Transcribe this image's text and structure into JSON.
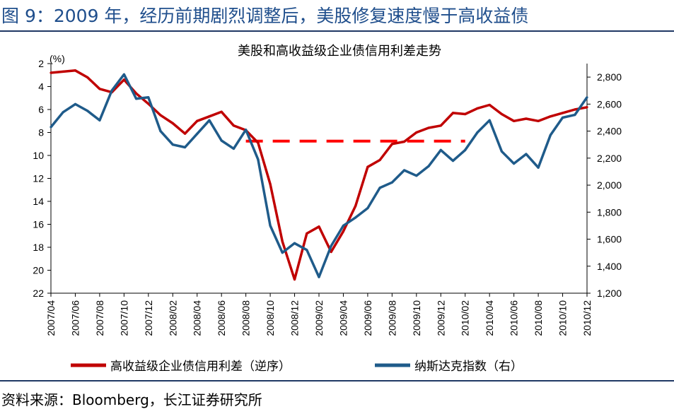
{
  "figure_title": "图 9：2009 年，经历前期剧烈调整后，美股修复速度慢于高收益债",
  "source": "资料来源：Bloomberg，长江证券研究所",
  "colors": {
    "red_series": "#c00000",
    "blue_series": "#1f5b8a",
    "accent": "#ff0000",
    "title": "#1f4e8c"
  },
  "chart_data": {
    "type": "line",
    "title": "美股和高收益级企业债信用利差走势",
    "left_unit": "(%)",
    "left_axis": {
      "ticks": [
        2,
        4,
        6,
        8,
        10,
        12,
        14,
        16,
        18,
        20,
        22
      ],
      "range": [
        2,
        22
      ],
      "inverted": true
    },
    "right_axis": {
      "ticks": [
        1200,
        1400,
        1600,
        1800,
        2000,
        2200,
        2400,
        2600,
        2800
      ],
      "tick_labels": [
        "1,200",
        "1,400",
        "1,600",
        "1,800",
        "2,000",
        "2,200",
        "2,400",
        "2,600",
        "2,800"
      ],
      "range": [
        1200,
        2900
      ]
    },
    "x_tick_labels": [
      "2007/04",
      "2007/06",
      "2007/08",
      "2007/10",
      "2007/12",
      "2008/02",
      "2008/04",
      "2008/06",
      "2008/08",
      "2008/10",
      "2008/12",
      "2009/02",
      "2009/04",
      "2009/06",
      "2009/08",
      "2009/10",
      "2009/12",
      "2010/02",
      "2010/04",
      "2010/06",
      "2010/08",
      "2010/10",
      "2010/12"
    ],
    "series": [
      {
        "name": "高收益级企业债信用利差（逆序）",
        "axis": "left",
        "color": "#c00000",
        "x": [
          "2007/04",
          "2007/05",
          "2007/06",
          "2007/07",
          "2007/08",
          "2007/09",
          "2007/10",
          "2007/11",
          "2007/12",
          "2008/01",
          "2008/02",
          "2008/03",
          "2008/04",
          "2008/05",
          "2008/06",
          "2008/07",
          "2008/08",
          "2008/09",
          "2008/10",
          "2008/11",
          "2008/12",
          "2009/01",
          "2009/02",
          "2009/03",
          "2009/04",
          "2009/05",
          "2009/06",
          "2009/07",
          "2009/08",
          "2009/09",
          "2009/10",
          "2009/11",
          "2009/12",
          "2010/01",
          "2010/02",
          "2010/03",
          "2010/04",
          "2010/05",
          "2010/06",
          "2010/07",
          "2010/08",
          "2010/09",
          "2010/10",
          "2010/11",
          "2010/12"
        ],
        "values": [
          2.8,
          2.7,
          2.6,
          3.2,
          4.2,
          4.5,
          3.4,
          4.6,
          5.5,
          6.5,
          7.2,
          8.1,
          7.0,
          6.6,
          6.2,
          7.4,
          7.8,
          8.9,
          12.5,
          17.5,
          20.8,
          16.8,
          16.2,
          18.4,
          16.6,
          14.4,
          11.0,
          10.4,
          9.0,
          8.8,
          8.0,
          7.6,
          7.4,
          6.3,
          6.4,
          5.9,
          5.6,
          6.4,
          7.0,
          6.8,
          7.0,
          6.6,
          6.3,
          6.0,
          5.8
        ]
      },
      {
        "name": "纳斯达克指数（右）",
        "axis": "right",
        "color": "#1f5b8a",
        "x": [
          "2007/04",
          "2007/05",
          "2007/06",
          "2007/07",
          "2007/08",
          "2007/09",
          "2007/10",
          "2007/11",
          "2007/12",
          "2008/01",
          "2008/02",
          "2008/03",
          "2008/04",
          "2008/05",
          "2008/06",
          "2008/07",
          "2008/08",
          "2008/09",
          "2008/10",
          "2008/11",
          "2008/12",
          "2009/01",
          "2009/02",
          "2009/03",
          "2009/04",
          "2009/05",
          "2009/06",
          "2009/07",
          "2009/08",
          "2009/09",
          "2009/10",
          "2009/11",
          "2009/12",
          "2010/01",
          "2010/02",
          "2010/03",
          "2010/04",
          "2010/05",
          "2010/06",
          "2010/07",
          "2010/08",
          "2010/09",
          "2010/10",
          "2010/11",
          "2010/12"
        ],
        "values": [
          2430,
          2540,
          2600,
          2550,
          2480,
          2700,
          2820,
          2640,
          2650,
          2400,
          2300,
          2280,
          2380,
          2480,
          2330,
          2270,
          2410,
          2190,
          1700,
          1500,
          1570,
          1520,
          1320,
          1550,
          1700,
          1760,
          1830,
          1980,
          2020,
          2110,
          2070,
          2140,
          2260,
          2180,
          2260,
          2390,
          2480,
          2250,
          2160,
          2230,
          2130,
          2370,
          2500,
          2520,
          2650
        ]
      }
    ],
    "annotation": {
      "type": "dashed-horizontal-line",
      "axis": "left",
      "value": 8.75,
      "from": "2008/08",
      "to": "2010/02",
      "color": "#ff0000"
    }
  }
}
